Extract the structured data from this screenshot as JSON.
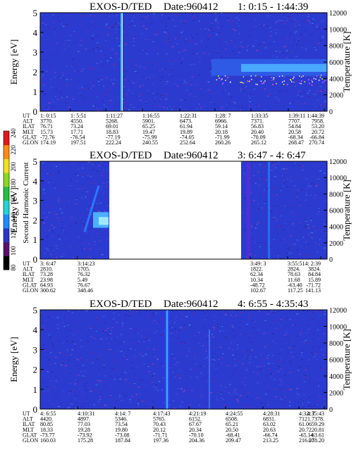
{
  "chart_data": [
    {
      "type": "heatmap",
      "title": "EXOS-D/TED",
      "date_label": "Date:960412",
      "time_range": "1: 0:15 - 1:44:39",
      "ylabel": "Energy [eV]",
      "ylim": [
        0,
        5
      ],
      "yticks": [
        "0",
        "1",
        "2",
        "3",
        "4",
        "5"
      ],
      "y2label": "Temperature [K]",
      "y2lim": [
        0,
        12000
      ],
      "y2ticks": [
        "0",
        "2000",
        "4000",
        "6000",
        "8000",
        "10000",
        "12000"
      ],
      "orbit_rows": [
        {
          "label": "UT",
          "values": [
            "1: 0:15",
            "1: 5:51",
            "1:11:27",
            "1:16:55",
            "1:22:31",
            "1:28: 7",
            "1:33:35",
            "1:39:11",
            "1:44:39"
          ]
        },
        {
          "label": "ALT",
          "values": [
            "3770.",
            "4550.",
            "5268.",
            "5901.",
            "6473.",
            "6966.",
            "7371.",
            "7707.",
            "7958."
          ]
        },
        {
          "label": "ILAT",
          "values": [
            "76.71",
            "73.24",
            "69.01",
            "65.25",
            "61.94",
            "59.14",
            "56.83",
            "54.84",
            "53.20"
          ]
        },
        {
          "label": "MLT",
          "values": [
            "15.73",
            "17.71",
            "18.83",
            "19.47",
            "19.89",
            "20.18",
            "20.40",
            "20.58",
            "20.72"
          ]
        },
        {
          "label": "GLAT",
          "values": [
            "-72.76",
            "-76.54",
            "-77.19",
            "-75.99",
            "-74.05",
            "-71.99",
            "-70.09",
            "-68.34",
            "-66.84"
          ]
        },
        {
          "label": "GLON",
          "values": [
            "174.19",
            "197.51",
            "222.24",
            "240.55",
            "252.64",
            "260.26",
            "265.12",
            "268.47",
            "270.74"
          ]
        }
      ]
    },
    {
      "type": "heatmap",
      "title": "EXOS-D/TED",
      "date_label": "Date:960412",
      "time_range": "3: 6:47 - 4: 6:47",
      "ylabel": "Energy [eV]",
      "ylim": [
        0,
        5
      ],
      "yticks": [
        "0",
        "1",
        "2",
        "3",
        "4",
        "5"
      ],
      "y2label": "Temperature [K]",
      "y2lim": [
        0,
        12000
      ],
      "y2ticks": [
        "0",
        "2000",
        "4000",
        "6000",
        "8000",
        "10000",
        "12000"
      ],
      "orbit_rows": [
        {
          "label": "UT",
          "values": [
            "3: 6:47",
            "3:14:23",
            "3:49: 3",
            "3:55:51",
            "4: 2:39"
          ]
        },
        {
          "label": "ALT",
          "values": [
            "2810.",
            "1705.",
            "1822.",
            "2824.",
            "3824."
          ]
        },
        {
          "label": "ILAT",
          "values": [
            "73.28",
            "76.32",
            "62.34",
            "78.63",
            "84.84"
          ]
        },
        {
          "label": "MLT",
          "values": [
            "23.98",
            "5.49",
            "10.34",
            "11.68",
            "15.89"
          ]
        },
        {
          "label": "GLAT",
          "values": [
            "64.93",
            "76.67",
            "-48.72",
            "-63.40",
            "-71.72"
          ]
        },
        {
          "label": "GLON",
          "values": [
            "300.62",
            "348.46",
            "102.67",
            "117.25",
            "141.13"
          ]
        }
      ]
    },
    {
      "type": "heatmap",
      "title": "EXOS-D/TED",
      "date_label": "Date:960412",
      "time_range": "4: 6:55 - 4:35:43",
      "ylabel": "Energy [eV]",
      "ylim": [
        0,
        5
      ],
      "yticks": [
        "0",
        "1",
        "2",
        "3",
        "4",
        "5"
      ],
      "y2label": "Temperature [K]",
      "y2lim": [
        0,
        12000
      ],
      "y2ticks": [
        "0",
        "2000",
        "4000",
        "6000",
        "8000",
        "10000",
        "12000"
      ],
      "orbit_rows": [
        {
          "label": "UT",
          "values": [
            "4: 6:55",
            "4:10:31",
            "4:14: 7",
            "4:17:43",
            "4:21:19",
            "4:24:55",
            "4:28:31",
            "4:32: 7",
            "4:35:43"
          ]
        },
        {
          "label": "ALT",
          "values": [
            "4420.",
            "4897.",
            "5346.",
            "5765.",
            "6152.",
            "6508.",
            "6831.",
            "7121.",
            "7378."
          ]
        },
        {
          "label": "ILAT",
          "values": [
            "80.85",
            "77.03",
            "73.54",
            "70.43",
            "67.67",
            "65.21",
            "63.02",
            "61.06",
            "59.29"
          ]
        },
        {
          "label": "MLT",
          "values": [
            "18.33",
            "19.28",
            "19.80",
            "20.12",
            "20.34",
            "20.50",
            "20.63",
            "20.72",
            "20.81"
          ]
        },
        {
          "label": "GLAT",
          "values": [
            "-73.77",
            "-73.92",
            "-73.08",
            "-71.71",
            "-70.10",
            "-68.41",
            "-66.74",
            "-65.14",
            "-63.61"
          ]
        },
        {
          "label": "GLON",
          "values": [
            "160.03",
            "175.28",
            "187.84",
            "197.36",
            "204.36",
            "209.47",
            "213.25",
            "216.07",
            "218.20"
          ]
        }
      ]
    }
  ],
  "colorbar": {
    "label": "Second Harmonic Current",
    "ticks": [
      "80",
      "100",
      "120",
      "140",
      "160",
      "180",
      "200",
      "220",
      "240"
    ],
    "colors": [
      "#000000",
      "#5a0f6e",
      "#2a36c8",
      "#1f8cff",
      "#1fd6d6",
      "#22c040",
      "#8ad81e",
      "#f0e020",
      "#ff8c14",
      "#e01818"
    ]
  }
}
